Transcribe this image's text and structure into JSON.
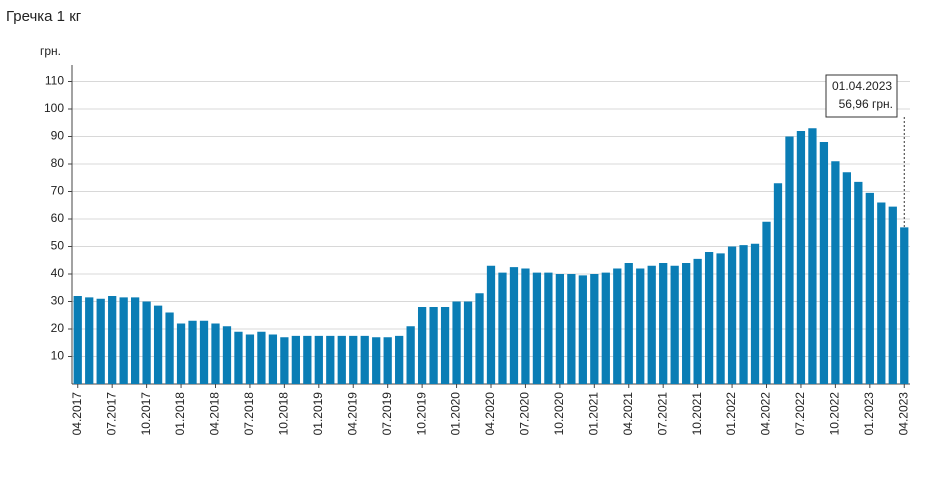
{
  "chart_data": {
    "type": "bar",
    "title": "Гречка 1 кг",
    "y_label": "грн.",
    "categories": [
      "04.2017",
      null,
      null,
      "07.2017",
      null,
      null,
      "10.2017",
      null,
      null,
      "01.2018",
      null,
      null,
      "04.2018",
      null,
      null,
      "07.2018",
      null,
      null,
      "10.2018",
      null,
      null,
      "01.2019",
      null,
      null,
      "04.2019",
      null,
      null,
      "07.2019",
      null,
      null,
      "10.2019",
      null,
      null,
      "01.2020",
      null,
      null,
      "04.2020",
      null,
      null,
      "07.2020",
      null,
      null,
      "10.2020",
      null,
      null,
      "01.2021",
      null,
      null,
      "04.2021",
      null,
      null,
      "07.2021",
      null,
      null,
      "10.2021",
      null,
      null,
      "01.2022",
      null,
      null,
      "04.2022",
      null,
      null,
      "07.2022",
      null,
      null,
      "10.2022",
      null,
      null,
      "01.2023",
      null,
      null,
      "04.2023"
    ],
    "values": [
      32,
      31.5,
      31,
      32,
      31.5,
      31.5,
      30,
      28.5,
      26,
      22,
      23,
      23,
      22,
      21,
      19,
      18,
      19,
      18,
      17,
      17.5,
      17.5,
      17.5,
      17.5,
      17.5,
      17.5,
      17.5,
      17,
      17,
      17.5,
      21,
      28,
      28,
      28,
      30,
      30,
      33,
      43,
      40.5,
      42.5,
      42,
      40.5,
      40.5,
      40,
      40,
      39.5,
      40,
      40.5,
      42,
      44,
      42,
      43,
      44,
      43,
      44,
      45.5,
      48,
      47.5,
      50,
      50.5,
      51,
      59,
      73,
      90,
      92,
      93,
      88,
      81,
      77,
      73.5,
      69.5,
      66,
      64.5,
      56.96
    ],
    "color": "#0a7db5",
    "ylim": [
      0,
      116
    ],
    "yticks": [
      10,
      20,
      30,
      40,
      50,
      60,
      70,
      80,
      90,
      100,
      110
    ],
    "grid": true,
    "annotation": {
      "date": "01.04.2023",
      "text": "56,96 грн."
    }
  }
}
